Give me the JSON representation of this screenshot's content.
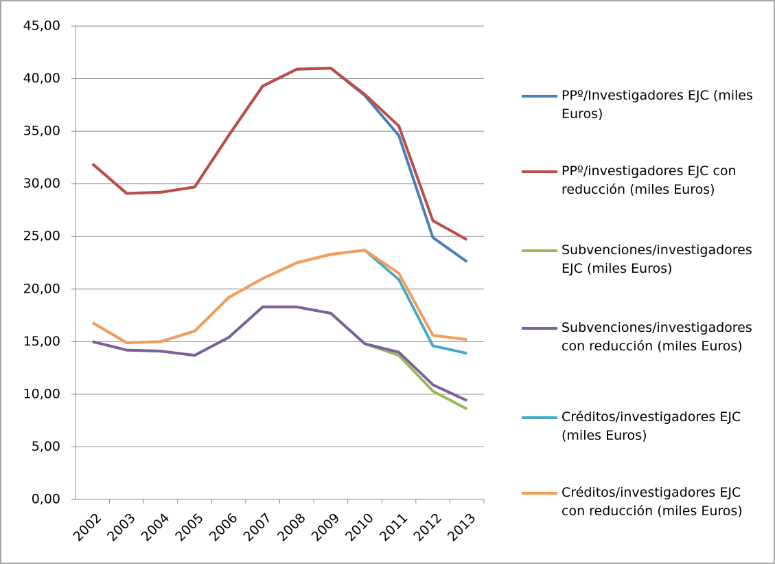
{
  "chart_data": {
    "type": "line",
    "categories": [
      "2002",
      "2003",
      "2004",
      "2005",
      "2006",
      "2007",
      "2008",
      "2009",
      "2010",
      "2011",
      "2012",
      "2013"
    ],
    "series": [
      {
        "name": "PPº/Investigadores EJC (miles  Euros)",
        "color": "#4a7ebb",
        "values": [
          31.9,
          29.1,
          29.2,
          29.7,
          34.6,
          39.3,
          40.9,
          41.0,
          38.4,
          34.6,
          24.9,
          22.6
        ]
      },
      {
        "name": "PPº/investigadores EJC con reducción (miles Euros)",
        "color": "#be4b48",
        "values": [
          31.9,
          29.1,
          29.2,
          29.7,
          34.6,
          39.3,
          40.9,
          41.0,
          38.5,
          35.5,
          26.5,
          24.7
        ]
      },
      {
        "name": "Subvenciones/investigadores EJC (miles Euros)",
        "color": "#98b954",
        "values": [
          15.0,
          14.2,
          14.1,
          13.7,
          15.4,
          18.3,
          18.3,
          17.7,
          14.8,
          13.7,
          10.3,
          8.6
        ]
      },
      {
        "name": "Subvenciones/investigadores con reducción (miles Euros)",
        "color": "#7d60a0",
        "values": [
          15.0,
          14.2,
          14.1,
          13.7,
          15.4,
          18.3,
          18.3,
          17.7,
          14.8,
          14.0,
          10.9,
          9.4
        ]
      },
      {
        "name": "Créditos/investigadores EJC (miles Euros)",
        "color": "#46aac5",
        "values": [
          16.8,
          14.9,
          15.0,
          16.0,
          19.2,
          21.0,
          22.5,
          23.3,
          23.7,
          20.9,
          14.6,
          13.9
        ]
      },
      {
        "name": "Créditos/investigadores EJC con reducción (miles Euros)",
        "color": "#f59d56",
        "values": [
          16.8,
          14.9,
          15.0,
          16.0,
          19.2,
          21.0,
          22.5,
          23.3,
          23.7,
          21.5,
          15.6,
          15.2
        ]
      }
    ],
    "ylim": [
      0,
      45
    ],
    "yticks": [
      {
        "value": 0,
        "label": "0,00"
      },
      {
        "value": 5,
        "label": "5,00"
      },
      {
        "value": 10,
        "label": "10,00"
      },
      {
        "value": 15,
        "label": "15,00"
      },
      {
        "value": 20,
        "label": "20,00"
      },
      {
        "value": 25,
        "label": "25,00"
      },
      {
        "value": 30,
        "label": "30,00"
      },
      {
        "value": 35,
        "label": "35,00"
      },
      {
        "value": 40,
        "label": "40,00"
      },
      {
        "value": 45,
        "label": "45,00"
      }
    ],
    "grid": true,
    "legend": "right"
  }
}
